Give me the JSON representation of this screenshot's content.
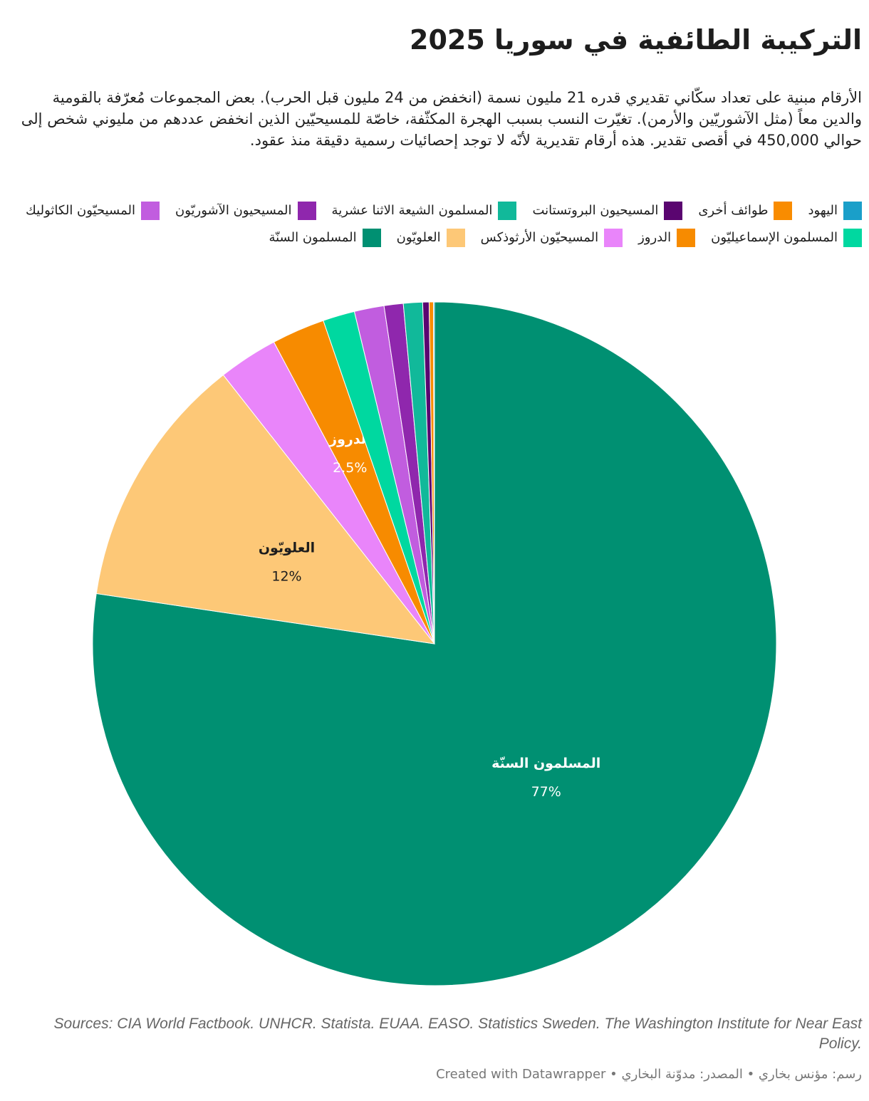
{
  "header": {
    "title": "التركيبة الطائفية في سوريا 2025",
    "subtitle": "الأرقام مبنية على تعداد سكّاني تقديري قدره 21 مليون نسمة (انخفض من 24 مليون قبل الحرب). بعض المجموعات مُعرّفة بالقومية والدين معاً (مثل الآشوريّين والأرمن). تغيّرت النسب بسبب الهجرة المكثّفة، خاصّة للمسيحيّين الذين انخفض عددهم من مليوني شخص إلى حوالي 450,000 في أقصى تقدير. هذه أرقام تقديرية لأنّه لا توجد إحصائيات رسمية دقيقة منذ عقود."
  },
  "legend": [
    {
      "label": "اليهود",
      "color": "#1a9fc9"
    },
    {
      "label": "طوائف أخرى",
      "color": "#f98c00"
    },
    {
      "label": "المسيحيون البروتستانت",
      "color": "#5a0570"
    },
    {
      "label": "المسلمون الشيعة الاثنا عشرية",
      "color": "#11b99a"
    },
    {
      "label": "المسيحيون الآشوريّون",
      "color": "#8f27ad"
    },
    {
      "label": "المسيحيّون الكاثوليك",
      "color": "#c15ddf"
    },
    {
      "label": "المسلمون الإسماعيليّون",
      "color": "#00d8a0"
    },
    {
      "label": "الدروز",
      "color": "#f78b00"
    },
    {
      "label": "المسيحيّون الأرثوذكس",
      "color": "#e985fa"
    },
    {
      "label": "العلويّون",
      "color": "#fdc877"
    },
    {
      "label": "المسلمون السنّة",
      "color": "#009072"
    }
  ],
  "chart_data": {
    "type": "pie",
    "slices": [
      {
        "label": "المسلمون السنّة",
        "value": 77,
        "color": "#009072",
        "shown_label": "المسلمون السنّة",
        "shown_value": "77%",
        "text_color": "#ffffff"
      },
      {
        "label": "العلويّون",
        "value": 12,
        "color": "#fdc877",
        "shown_label": "العلويّون",
        "shown_value": "12%",
        "text_color": "#1d1d1d"
      },
      {
        "label": "المسيحيّون الأرثوذكس",
        "value": 2.8,
        "color": "#e985fa"
      },
      {
        "label": "الدروز",
        "value": 2.5,
        "color": "#f78b00",
        "shown_label": "الدروز",
        "shown_value": "2.5%",
        "text_color": "#ffffff"
      },
      {
        "label": "المسلمون الإسماعيليّون",
        "value": 1.5,
        "color": "#00d8a0"
      },
      {
        "label": "المسيحيّون الكاثوليك",
        "value": 1.4,
        "color": "#c15ddf"
      },
      {
        "label": "المسيحيون الآشوريّون",
        "value": 0.9,
        "color": "#8f27ad"
      },
      {
        "label": "المسلمون الشيعة الاثنا عشرية",
        "value": 0.9,
        "color": "#11b99a"
      },
      {
        "label": "المسيحيون البروتستانت",
        "value": 0.3,
        "color": "#5a0570"
      },
      {
        "label": "طوائف أخرى",
        "value": 0.2,
        "color": "#f98c00"
      },
      {
        "label": "اليهود",
        "value": 0.05,
        "color": "#1a9fc9"
      }
    ]
  },
  "footer": {
    "sources": "Sources: CIA World Factbook. UNHCR. Statista. EUAA. EASO. Statistics Sweden. The Washington Institute for Near East Policy.",
    "credit": "رسم: مؤنس بخاري • المصدر: مدوّنة البخاري • Created with Datawrapper"
  }
}
